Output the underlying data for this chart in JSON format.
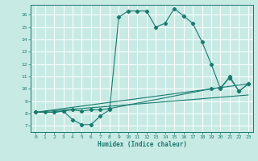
{
  "xlabel": "Humidex (Indice chaleur)",
  "bg_color": "#c8eae5",
  "grid_color": "#ffffff",
  "line_color": "#1a7a6e",
  "xlim": [
    -0.5,
    23.5
  ],
  "ylim": [
    6.5,
    16.8
  ],
  "xticks": [
    0,
    1,
    2,
    3,
    4,
    5,
    6,
    7,
    8,
    9,
    10,
    11,
    12,
    13,
    14,
    15,
    16,
    17,
    18,
    19,
    20,
    21,
    22,
    23
  ],
  "yticks": [
    7,
    8,
    9,
    10,
    11,
    12,
    13,
    14,
    15,
    16
  ],
  "curve1_x": [
    0,
    1,
    2,
    3,
    4,
    5,
    6,
    7,
    8,
    9,
    10,
    11,
    12,
    13,
    14,
    15,
    16,
    17,
    18,
    19,
    20,
    21,
    22,
    23
  ],
  "curve1_y": [
    8.1,
    8.1,
    8.1,
    8.2,
    7.5,
    7.1,
    7.1,
    7.8,
    8.3,
    15.8,
    16.3,
    16.3,
    16.3,
    15.0,
    15.3,
    16.5,
    15.9,
    15.3,
    13.8,
    12.0,
    10.0,
    11.0,
    9.8,
    10.4
  ],
  "curve2_x": [
    0,
    2,
    3,
    4,
    5,
    6,
    7,
    8,
    19,
    20,
    21,
    22,
    23
  ],
  "curve2_y": [
    8.1,
    8.1,
    8.2,
    8.3,
    8.2,
    8.3,
    8.3,
    8.4,
    10.0,
    10.1,
    10.9,
    9.8,
    10.4
  ],
  "curve3_x": [
    0,
    23
  ],
  "curve3_y": [
    8.1,
    10.4
  ],
  "curve4_x": [
    0,
    23
  ],
  "curve4_y": [
    8.1,
    9.5
  ]
}
